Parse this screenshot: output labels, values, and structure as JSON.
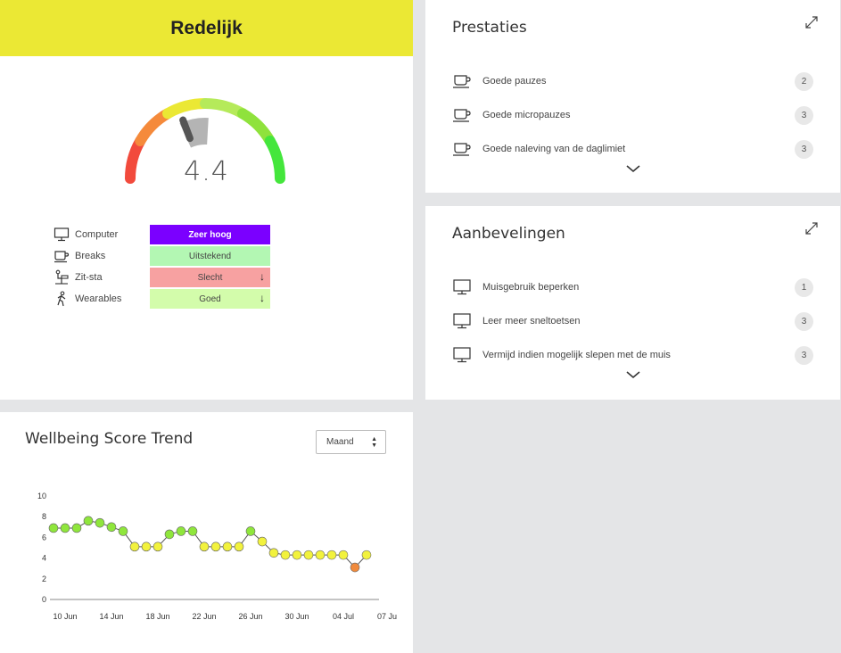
{
  "score_card": {
    "header": "Redelijk",
    "score": "4.4",
    "gauge_level": 4.4,
    "categories": [
      {
        "label": "Computer",
        "icon": "monitor-icon"
      },
      {
        "label": "Breaks",
        "icon": "coffee-cup-icon"
      },
      {
        "label": "Zit-sta",
        "icon": "sit-stand-icon"
      },
      {
        "label": "Wearables",
        "icon": "walking-person-icon"
      }
    ],
    "ratings": [
      {
        "label": "Zeer hoog",
        "arrow": ""
      },
      {
        "label": "Uitstekend",
        "arrow": ""
      },
      {
        "label": "Slecht",
        "arrow": "↓"
      },
      {
        "label": "Goed",
        "arrow": "↓"
      }
    ]
  },
  "prestaties": {
    "title": "Prestaties",
    "items": [
      {
        "label": "Goede pauzes",
        "count": "2",
        "icon": "coffee-cup-icon"
      },
      {
        "label": "Goede micropauzes",
        "count": "3",
        "icon": "coffee-cup-icon"
      },
      {
        "label": "Goede naleving van de daglimiet",
        "count": "3",
        "icon": "coffee-cup-icon"
      }
    ]
  },
  "aanbevelingen": {
    "title": "Aanbevelingen",
    "items": [
      {
        "label": "Muisgebruik beperken",
        "count": "1",
        "icon": "monitor-icon"
      },
      {
        "label": "Leer meer sneltoetsen",
        "count": "3",
        "icon": "monitor-icon"
      },
      {
        "label": "Vermijd indien mogelijk slepen met de muis",
        "count": "3",
        "icon": "monitor-icon"
      }
    ]
  },
  "trend": {
    "title": "Wellbeing Score Trend",
    "period": "Maand"
  },
  "chart_data": {
    "type": "line",
    "title": "Wellbeing Score Trend",
    "ylim": [
      0,
      10
    ],
    "yticks": [
      0,
      2,
      4,
      6,
      8,
      10
    ],
    "x_tick_labels": [
      "10 Jun",
      "14 Jun",
      "18 Jun",
      "22 Jun",
      "26 Jun",
      "30 Jun",
      "04 Jul",
      "07 Ju"
    ],
    "series": [
      {
        "x": [
          "09 Jun",
          "10 Jun",
          "11 Jun",
          "12 Jun",
          "13 Jun",
          "14 Jun",
          "15 Jun",
          "16 Jun",
          "17 Jun",
          "18 Jun",
          "19 Jun",
          "20 Jun",
          "21 Jun",
          "22 Jun",
          "23 Jun",
          "24 Jun",
          "25 Jun",
          "26 Jun",
          "27 Jun",
          "28 Jun",
          "29 Jun",
          "30 Jun",
          "01 Jul",
          "02 Jul",
          "03 Jul",
          "04 Jul",
          "05 Jul",
          "06 Jul"
        ],
        "values": [
          6.9,
          6.9,
          6.9,
          7.6,
          7.4,
          7.0,
          6.6,
          5.1,
          5.1,
          5.1,
          6.3,
          6.6,
          6.6,
          5.1,
          5.1,
          5.1,
          5.1,
          6.6,
          5.6,
          4.5,
          4.3,
          4.3,
          4.3,
          4.3,
          4.3,
          4.3,
          3.1,
          4.3
        ]
      }
    ],
    "colors": {
      "good": "#8fe63c",
      "ok": "#f2f23d",
      "bad": "#f08a3c",
      "line": "#555555",
      "axis": "#888888"
    }
  }
}
